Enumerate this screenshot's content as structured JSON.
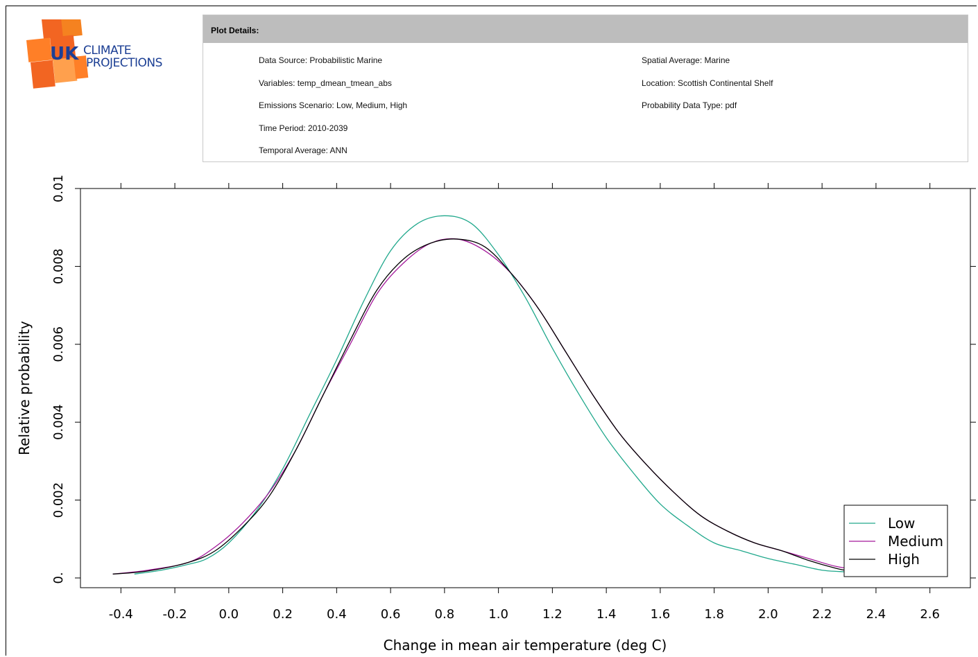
{
  "logo": {
    "text_uk": "UK",
    "text_climate": "CLIMATE",
    "text_projections": "PROJECTIONS",
    "colors": [
      "#f26522",
      "#ff7f27",
      "#f58220",
      "#ffa04d"
    ]
  },
  "plot_details": {
    "header": "Plot Details:",
    "left": [
      "Data Source: Probabilistic Marine",
      "Variables: temp_dmean_tmean_abs",
      "Emissions Scenario: Low, Medium, High",
      "Time Period: 2010-2039",
      "Temporal Average: ANN"
    ],
    "right": [
      "Spatial Average: Marine",
      "Location: Scottish Continental Shelf",
      "Probability Data Type: pdf"
    ]
  },
  "chart_data": {
    "type": "line",
    "xlabel": "Change in mean air temperature (deg C)",
    "ylabel": "Relative probability",
    "xlim": [
      -0.55,
      2.75
    ],
    "ylim": [
      -0.00025,
      0.01
    ],
    "xticks": [
      -0.4,
      -0.2,
      0.0,
      0.2,
      0.4,
      0.6,
      0.8,
      1.0,
      1.2,
      1.4,
      1.6,
      1.8,
      2.0,
      2.2,
      2.4,
      2.6
    ],
    "xtick_labels": [
      "-0.4",
      "-0.2",
      "0.0",
      "0.2",
      "0.4",
      "0.6",
      "0.8",
      "1.0",
      "1.2",
      "1.4",
      "1.6",
      "1.8",
      "2.0",
      "2.2",
      "2.4",
      "2.6"
    ],
    "yticks": [
      0,
      0.002,
      0.004,
      0.006,
      0.008,
      0.01
    ],
    "ytick_labels": [
      "0.",
      "0.002",
      "0.004",
      "0.006",
      "0.008",
      "0.01"
    ],
    "legend_position": "bottom-right",
    "series": [
      {
        "name": "Low",
        "color": "#20a88c",
        "x": [
          -0.35,
          -0.25,
          -0.15,
          -0.08,
          0.0,
          0.1,
          0.2,
          0.3,
          0.4,
          0.5,
          0.6,
          0.7,
          0.8,
          0.9,
          1.0,
          1.1,
          1.2,
          1.3,
          1.4,
          1.5,
          1.6,
          1.7,
          1.8,
          1.9,
          2.0,
          2.1,
          2.2,
          2.3,
          2.35
        ],
        "y": [
          0.0001,
          0.0002,
          0.00035,
          0.0005,
          0.0009,
          0.0017,
          0.0028,
          0.0042,
          0.0056,
          0.0071,
          0.0084,
          0.0091,
          0.0093,
          0.0091,
          0.0083,
          0.0072,
          0.0059,
          0.0047,
          0.0036,
          0.0027,
          0.0019,
          0.00135,
          0.0009,
          0.0007,
          0.0005,
          0.00035,
          0.0002,
          0.00015,
          0.0001
        ]
      },
      {
        "name": "Medium",
        "color": "#a3189a",
        "x": [
          -0.43,
          -0.3,
          -0.15,
          -0.05,
          0.05,
          0.15,
          0.25,
          0.35,
          0.45,
          0.55,
          0.65,
          0.75,
          0.85,
          0.95,
          1.05,
          1.15,
          1.25,
          1.35,
          1.45,
          1.55,
          1.65,
          1.75,
          1.85,
          1.95,
          2.05,
          2.15,
          2.25,
          2.35
        ],
        "y": [
          0.0001,
          0.0002,
          0.0004,
          0.0008,
          0.0014,
          0.0022,
          0.0033,
          0.0047,
          0.006,
          0.0073,
          0.0081,
          0.0086,
          0.0087,
          0.0084,
          0.0078,
          0.0069,
          0.0058,
          0.0047,
          0.0037,
          0.0029,
          0.0022,
          0.0016,
          0.0012,
          0.0009,
          0.0007,
          0.0005,
          0.0003,
          0.0002
        ]
      },
      {
        "name": "High",
        "color": "#000000",
        "x": [
          -0.43,
          -0.3,
          -0.15,
          -0.05,
          0.05,
          0.15,
          0.25,
          0.35,
          0.45,
          0.55,
          0.65,
          0.75,
          0.85,
          0.95,
          1.05,
          1.15,
          1.25,
          1.35,
          1.45,
          1.55,
          1.65,
          1.75,
          1.85,
          1.95,
          2.05,
          2.15,
          2.25,
          2.32
        ],
        "y": [
          0.0001,
          0.00018,
          0.0004,
          0.0007,
          0.0013,
          0.0021,
          0.0033,
          0.0047,
          0.0061,
          0.0074,
          0.0082,
          0.0086,
          0.0087,
          0.0085,
          0.0078,
          0.0069,
          0.0058,
          0.0047,
          0.0037,
          0.0029,
          0.0022,
          0.0016,
          0.0012,
          0.0009,
          0.0007,
          0.00045,
          0.00025,
          0.00015
        ]
      }
    ]
  }
}
